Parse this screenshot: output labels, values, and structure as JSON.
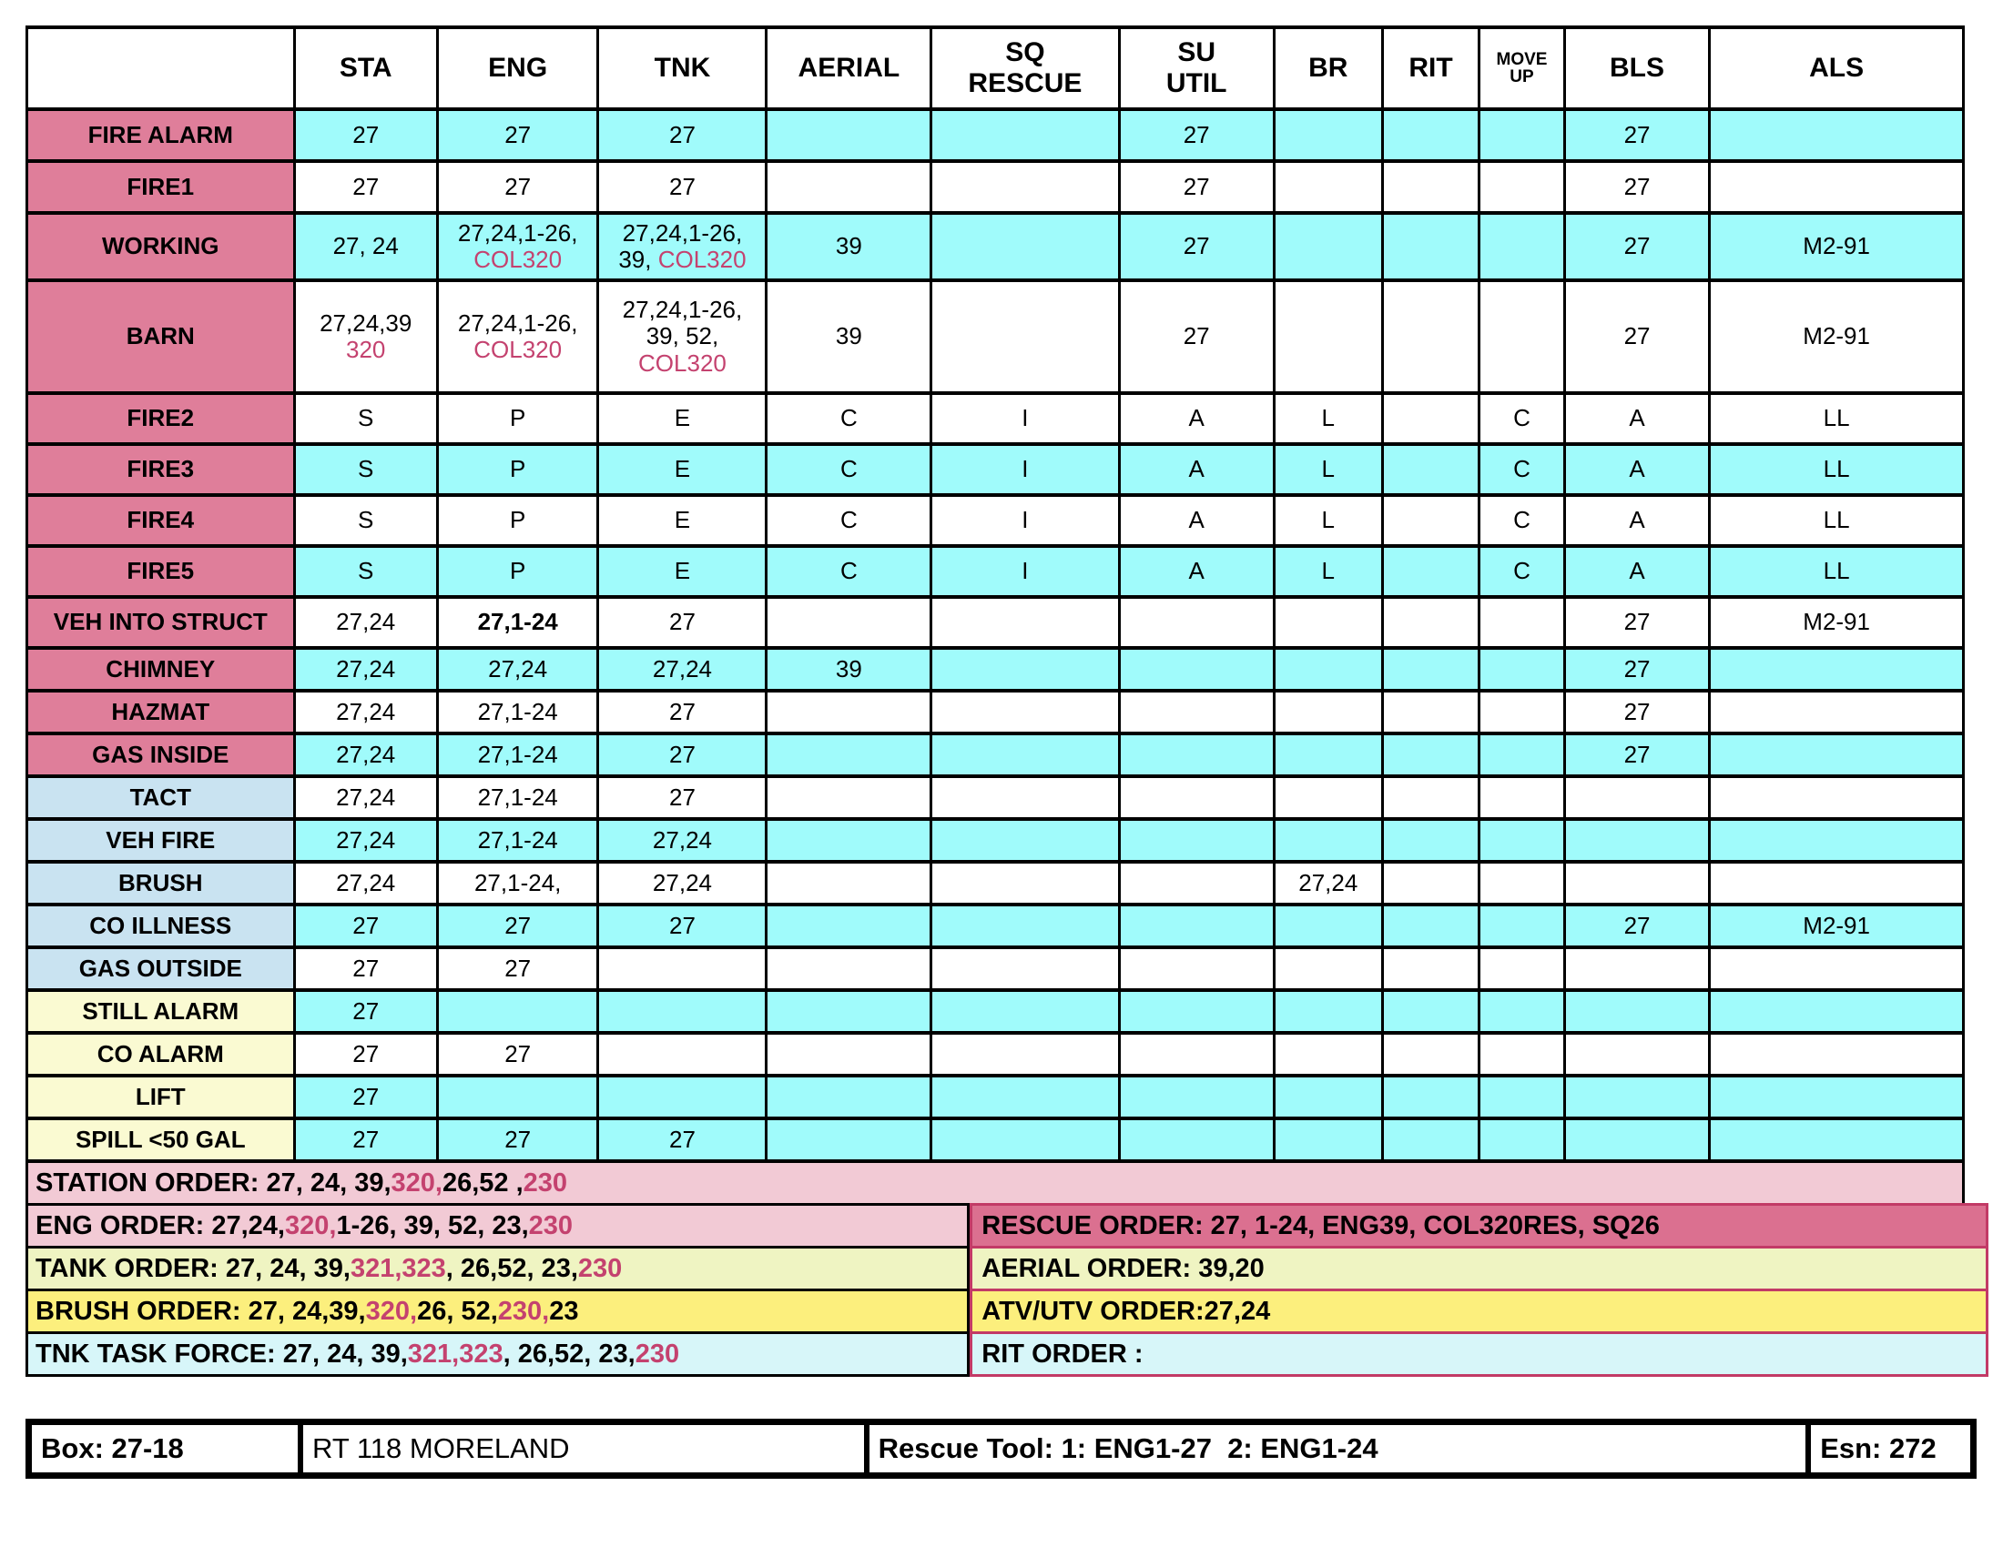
{
  "colors": {
    "pink_label": "#DF7E9A",
    "blue_label": "#C9E3F1",
    "yellow_label": "#FAFAD2",
    "cyan_cell": "#A0FBFB",
    "pink_text": "#C4426F",
    "rose_border": "#C23A66",
    "order_pink": "#F2CAD5",
    "order_rescue": "#DB7090",
    "order_green": "#EFF4C2",
    "order_yellow": "#FCEF7D",
    "order_cyan": "#D7F6F9"
  },
  "table": {
    "header": [
      {
        "key": "corner",
        "lines": []
      },
      {
        "key": "sta",
        "lines": [
          "STA"
        ]
      },
      {
        "key": "eng",
        "lines": [
          "ENG"
        ]
      },
      {
        "key": "tnk",
        "lines": [
          "TNK"
        ]
      },
      {
        "key": "aerial",
        "lines": [
          "AERIAL"
        ]
      },
      {
        "key": "sq-rescue",
        "lines": [
          "SQ",
          "RESCUE"
        ]
      },
      {
        "key": "su-util",
        "lines": [
          "SU",
          "UTIL"
        ]
      },
      {
        "key": "br",
        "lines": [
          "BR"
        ]
      },
      {
        "key": "rit",
        "lines": [
          "RIT"
        ]
      },
      {
        "key": "move-up",
        "lines": [
          "MOVE",
          "UP"
        ],
        "small": true
      },
      {
        "key": "bls",
        "lines": [
          "BLS"
        ]
      },
      {
        "key": "als",
        "lines": [
          "ALS"
        ]
      }
    ],
    "col_keys": [
      "sta",
      "eng",
      "tnk",
      "aerial",
      "sq-rescue",
      "su-util",
      "br",
      "rit",
      "move-up",
      "bls",
      "als"
    ],
    "rows": [
      {
        "label": "FIRE ALARM",
        "lbg": "pink_label",
        "cbg": "cyan",
        "rh": 57,
        "cells": [
          "27",
          "27",
          "27",
          "",
          "",
          "27",
          "",
          "",
          "",
          "27",
          ""
        ]
      },
      {
        "label": "FIRE1",
        "lbg": "pink_label",
        "cbg": "white",
        "rh": 57,
        "cells": [
          "27",
          "27",
          "27",
          "",
          "",
          "27",
          "",
          "",
          "",
          "27",
          ""
        ]
      },
      {
        "label": "WORKING",
        "lbg": "pink_label",
        "cbg": "cyan",
        "rh": 74,
        "cells": [
          "27, 24",
          {
            "lines": [
              [
                {
                  "t": "27,24,1-26,"
                }
              ],
              [
                {
                  "t": "COL320",
                  "s": "pink"
                }
              ]
            ]
          },
          {
            "lines": [
              [
                {
                  "t": "27,24,1-26,"
                }
              ],
              [
                {
                  "t": "39, "
                },
                {
                  "t": "COL320",
                  "s": "pink"
                }
              ]
            ]
          },
          "39",
          "",
          "27",
          "",
          "",
          "",
          "27",
          "M2-91"
        ]
      },
      {
        "label": "BARN",
        "lbg": "pink_label",
        "cbg": "white",
        "rh": 124,
        "cells": [
          {
            "lines": [
              [
                {
                  "t": "27,24,39"
                }
              ],
              [
                {
                  "t": "320",
                  "s": "pink"
                }
              ]
            ]
          },
          {
            "lines": [
              [
                {
                  "t": "27,24,1-26,"
                }
              ],
              [
                {
                  "t": "COL320",
                  "s": "pink"
                }
              ]
            ]
          },
          {
            "lines": [
              [
                {
                  "t": "27,24,1-26,"
                }
              ],
              [
                {
                  "t": "39, 52,"
                }
              ],
              [
                {
                  "t": "COL320",
                  "s": "pink"
                }
              ]
            ]
          },
          "39",
          "",
          "27",
          "",
          "",
          "",
          "27",
          "M2-91"
        ]
      },
      {
        "label": "FIRE2",
        "lbg": "pink_label",
        "cbg": "white",
        "rh": 56,
        "cells": [
          "S",
          "P",
          "E",
          "C",
          "I",
          "A",
          "L",
          "",
          "C",
          "A",
          "LL"
        ]
      },
      {
        "label": "FIRE3",
        "lbg": "pink_label",
        "cbg": "cyan",
        "rh": 56,
        "cells": [
          "S",
          "P",
          "E",
          "C",
          "I",
          "A",
          "L",
          "",
          "C",
          "A",
          "LL"
        ]
      },
      {
        "label": "FIRE4",
        "lbg": "pink_label",
        "cbg": "white",
        "rh": 56,
        "cells": [
          "S",
          "P",
          "E",
          "C",
          "I",
          "A",
          "L",
          "",
          "C",
          "A",
          "LL"
        ]
      },
      {
        "label": "FIRE5",
        "lbg": "pink_label",
        "cbg": "cyan",
        "rh": 56,
        "cells": [
          "S",
          "P",
          "E",
          "C",
          "I",
          "A",
          "L",
          "",
          "C",
          "A",
          "LL"
        ]
      },
      {
        "label": "VEH INTO STRUCT",
        "lbg": "pink_label",
        "cbg": "white",
        "rh": 56,
        "cells": [
          "27,24",
          {
            "lines": [
              [
                {
                  "t": "27,1-24",
                  "b": true
                }
              ]
            ]
          },
          "27",
          "",
          "",
          "",
          "",
          "",
          "",
          "27",
          "M2-91"
        ]
      },
      {
        "label": "CHIMNEY",
        "lbg": "pink_label",
        "cbg": "cyan",
        "rh": 47,
        "cells": [
          "27,24",
          "27,24",
          "27,24",
          "39",
          "",
          "",
          "",
          "",
          "",
          "27",
          ""
        ]
      },
      {
        "label": "HAZMAT",
        "lbg": "pink_label",
        "cbg": "white",
        "rh": 47,
        "cells": [
          "27,24",
          "27,1-24",
          "27",
          "",
          "",
          "",
          "",
          "",
          "",
          "27",
          ""
        ]
      },
      {
        "label": "GAS INSIDE",
        "lbg": "pink_label",
        "cbg": "cyan",
        "rh": 47,
        "cells": [
          "27,24",
          "27,1-24",
          "27",
          "",
          "",
          "",
          "",
          "",
          "",
          "27",
          ""
        ]
      },
      {
        "label": "TACT",
        "lbg": "blue_label",
        "cbg": "white",
        "rh": 47,
        "cells": [
          "27,24",
          "27,1-24",
          "27",
          "",
          "",
          "",
          "",
          "",
          "",
          "",
          ""
        ]
      },
      {
        "label": "VEH FIRE",
        "lbg": "blue_label",
        "cbg": "cyan",
        "rh": 47,
        "cells": [
          "27,24",
          "27,1-24",
          "27,24",
          "",
          "",
          "",
          "",
          "",
          "",
          "",
          ""
        ]
      },
      {
        "label": "BRUSH",
        "lbg": "blue_label",
        "cbg": "white",
        "rh": 47,
        "cells": [
          "27,24",
          "27,1-24,",
          "27,24",
          "",
          "",
          "",
          "27,24",
          "",
          "",
          "",
          ""
        ]
      },
      {
        "label": "CO ILLNESS",
        "lbg": "blue_label",
        "cbg": "cyan",
        "rh": 47,
        "cells": [
          "27",
          "27",
          "27",
          "",
          "",
          "",
          "",
          "",
          "",
          "27",
          "M2-91"
        ]
      },
      {
        "label": "GAS OUTSIDE",
        "lbg": "blue_label",
        "cbg": "white",
        "rh": 47,
        "cells": [
          "27",
          "27",
          "",
          "",
          "",
          "",
          "",
          "",
          "",
          "",
          ""
        ]
      },
      {
        "label": "STILL ALARM",
        "lbg": "yellow_label",
        "cbg": "cyan",
        "rh": 47,
        "cells": [
          "27",
          "",
          "",
          "",
          "",
          "",
          "",
          "",
          "",
          "",
          ""
        ]
      },
      {
        "label": "CO ALARM",
        "lbg": "yellow_label",
        "cbg": "white",
        "rh": 47,
        "cells": [
          "27",
          "27",
          "",
          "",
          "",
          "",
          "",
          "",
          "",
          "",
          ""
        ]
      },
      {
        "label": "LIFT",
        "lbg": "yellow_label",
        "cbg": "cyan",
        "rh": 47,
        "cells": [
          "27",
          "",
          "",
          "",
          "",
          "",
          "",
          "",
          "",
          "",
          ""
        ]
      },
      {
        "label": "SPILL <50 GAL",
        "lbg": "yellow_label",
        "cbg": "cyan",
        "rh": 47,
        "cells": [
          "27",
          "27",
          "27",
          "",
          "",
          "",
          "",
          "",
          "",
          "",
          ""
        ]
      }
    ]
  },
  "orders": {
    "station": {
      "name": "station-order",
      "bg": "order_pink",
      "runs": [
        {
          "t": "STATION ORDER: 27, 24, 39, "
        },
        {
          "t": "320,",
          "s": "pink"
        },
        {
          "t": " 26,52 , "
        },
        {
          "t": "230",
          "s": "pink"
        }
      ]
    },
    "split_rows": [
      {
        "left": {
          "name": "eng-order",
          "bg": "order_pink",
          "runs": [
            {
              "t": "ENG ORDER: 27,24, "
            },
            {
              "t": "320,",
              "s": "pink"
            },
            {
              "t": "  1-26, 39, 52, 23, "
            },
            {
              "t": "230",
              "s": "pink"
            }
          ]
        },
        "right": {
          "name": "rescue-order",
          "bg": "order_rescue",
          "runs": [
            {
              "t": "RESCUE ORDER: 27, 1-24, ENG39, COL320RES, SQ26"
            }
          ]
        }
      },
      {
        "left": {
          "name": "tank-order",
          "bg": "order_green",
          "runs": [
            {
              "t": "TANK ORDER: 27, 24, 39, "
            },
            {
              "t": "321,323",
              "s": "pink"
            },
            {
              "t": ", 26,52, 23, "
            },
            {
              "t": "230",
              "s": "pink"
            }
          ]
        },
        "right": {
          "name": "aerial-order",
          "bg": "order_green",
          "runs": [
            {
              "t": "AERIAL ORDER: 39,20"
            }
          ]
        }
      },
      {
        "left": {
          "name": "brush-order",
          "bg": "order_yellow",
          "runs": [
            {
              "t": "BRUSH ORDER: 27, 24,39, "
            },
            {
              "t": "320,",
              "s": "pink"
            },
            {
              "t": " 26, 52, "
            },
            {
              "t": "230,",
              "s": "pink"
            },
            {
              "t": " 23"
            }
          ]
        },
        "right": {
          "name": "atv-utv-order",
          "bg": "order_yellow",
          "runs": [
            {
              "t": "ATV/UTV ORDER:27,24"
            }
          ]
        }
      },
      {
        "left": {
          "name": "tnk-task-force-order",
          "bg": "order_cyan",
          "runs": [
            {
              "t": "TNK TASK FORCE: 27, 24, 39, "
            },
            {
              "t": "321,323",
              "s": "pink"
            },
            {
              "t": ", 26,52, 23, "
            },
            {
              "t": "230",
              "s": "pink"
            }
          ]
        },
        "right": {
          "name": "rit-order",
          "bg": "order_cyan",
          "runs": [
            {
              "t": "RIT ORDER :"
            }
          ]
        }
      }
    ]
  },
  "footer": {
    "cells": [
      {
        "name": "box-number",
        "t": "Box: 27-18",
        "bold": true
      },
      {
        "name": "route",
        "t": "RT 118 MORELAND",
        "bold": false
      },
      {
        "name": "rescue-tool",
        "t": "Rescue Tool: 1: ENG1-27  2: ENG1-24",
        "bold": true
      },
      {
        "name": "esn",
        "t": "Esn: 272",
        "bold": true
      }
    ]
  }
}
